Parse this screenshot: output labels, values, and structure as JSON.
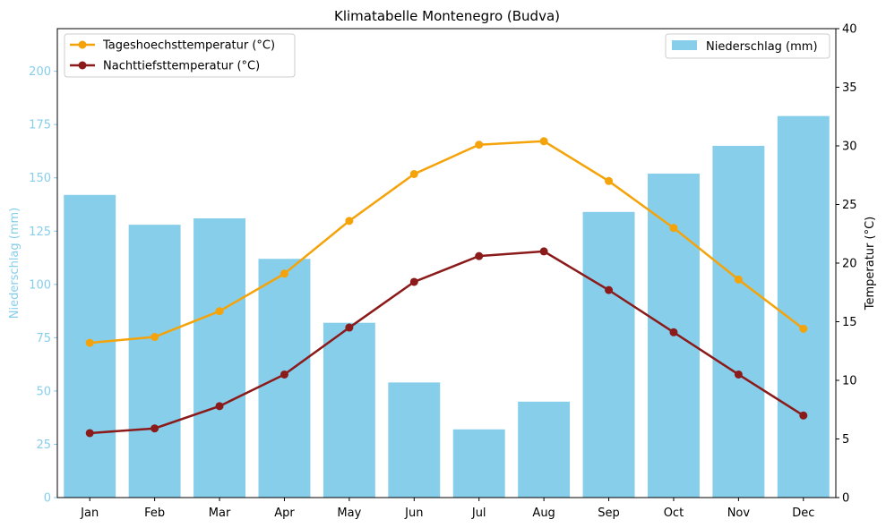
{
  "chart_data": {
    "type": "bar+line",
    "title": "Klimatabelle Montenegro (Budva)",
    "categories": [
      "Jan",
      "Feb",
      "Mar",
      "Apr",
      "May",
      "Jun",
      "Jul",
      "Aug",
      "Sep",
      "Oct",
      "Nov",
      "Dec"
    ],
    "bar_series": {
      "name": "Niederschlag (mm)",
      "values": [
        142,
        128,
        131,
        112,
        82,
        54,
        32,
        45,
        134,
        152,
        165,
        179
      ],
      "color": "#87ceeb",
      "axis": "left"
    },
    "line_series": [
      {
        "name": "Tageshoechsttemperatur (°C)",
        "values": [
          13.2,
          13.7,
          15.9,
          19.1,
          23.6,
          27.6,
          30.1,
          30.4,
          27.0,
          23.0,
          18.6,
          14.4
        ],
        "color": "#f4a30a",
        "axis": "right"
      },
      {
        "name": "Nachttiefsttemperatur (°C)",
        "values": [
          5.5,
          5.9,
          7.8,
          10.5,
          14.5,
          18.4,
          20.6,
          21.0,
          17.7,
          14.1,
          10.5,
          7.0
        ],
        "color": "#8b1a1a",
        "axis": "right"
      }
    ],
    "left_axis": {
      "label": "Niederschlag (mm)",
      "ylim": [
        0,
        220
      ],
      "ticks": [
        0,
        25,
        50,
        75,
        100,
        125,
        150,
        175,
        200
      ],
      "color": "#87ceeb"
    },
    "right_axis": {
      "label": "Temperatur (°C)",
      "ylim": [
        0,
        40
      ],
      "ticks": [
        0,
        5,
        10,
        15,
        20,
        25,
        30,
        35,
        40
      ]
    },
    "legend_left": "top-left",
    "legend_right": "top-right",
    "grid": false
  }
}
